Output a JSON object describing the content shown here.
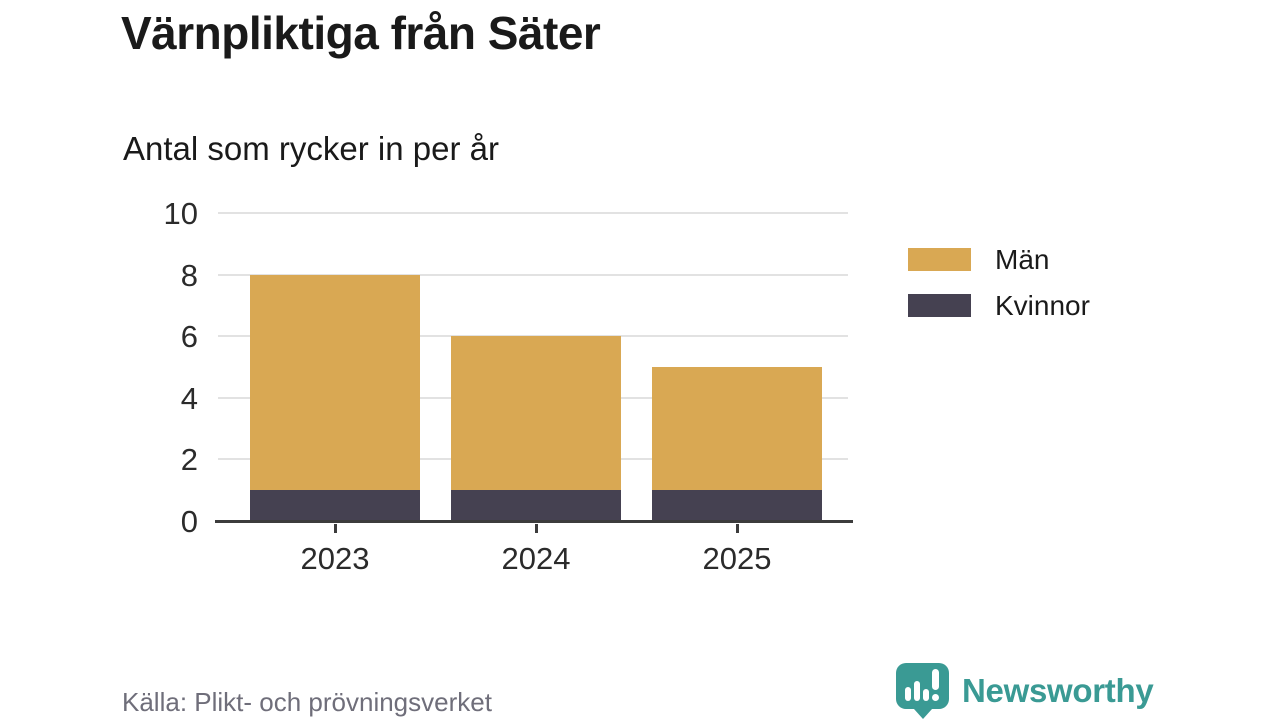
{
  "header": {
    "title": "Värnpliktiga från Säter",
    "subtitle": "Antal som rycker in per år"
  },
  "chart_data": {
    "type": "bar",
    "stacked": true,
    "title": "Värnpliktiga från Säter",
    "subtitle": "Antal som rycker in per år",
    "categories": [
      "2023",
      "2024",
      "2025"
    ],
    "series": [
      {
        "name": "Män",
        "values": [
          7,
          5,
          4
        ],
        "color": "#d9a853"
      },
      {
        "name": "Kvinnor",
        "values": [
          1,
          1,
          1
        ],
        "color": "#454151"
      }
    ],
    "stack_order_bottom_to_top": [
      "Kvinnor",
      "Män"
    ],
    "stacked_totals": [
      8,
      6,
      5
    ],
    "xlabel": "",
    "ylabel": "",
    "ylim": [
      0,
      10
    ],
    "yticks": [
      0,
      2,
      4,
      6,
      8,
      10
    ],
    "grid": true,
    "legend_position": "right"
  },
  "footer": {
    "source": "Källa: Plikt- och prövningsverket",
    "brand": "Newsworthy"
  },
  "colors": {
    "background": "#ffffff",
    "man": "#d9a853",
    "kvinnor": "#454151",
    "grid": "#e2e2e2",
    "axis": "#3c3c3c",
    "title_text": "#1a1a1a",
    "tick_text": "#2b2b2b",
    "source_text": "#6f6e7a",
    "brand_teal": "#3a9a94"
  },
  "icons": {
    "brand_logo": "speech-bubble-bar-chart-icon"
  }
}
